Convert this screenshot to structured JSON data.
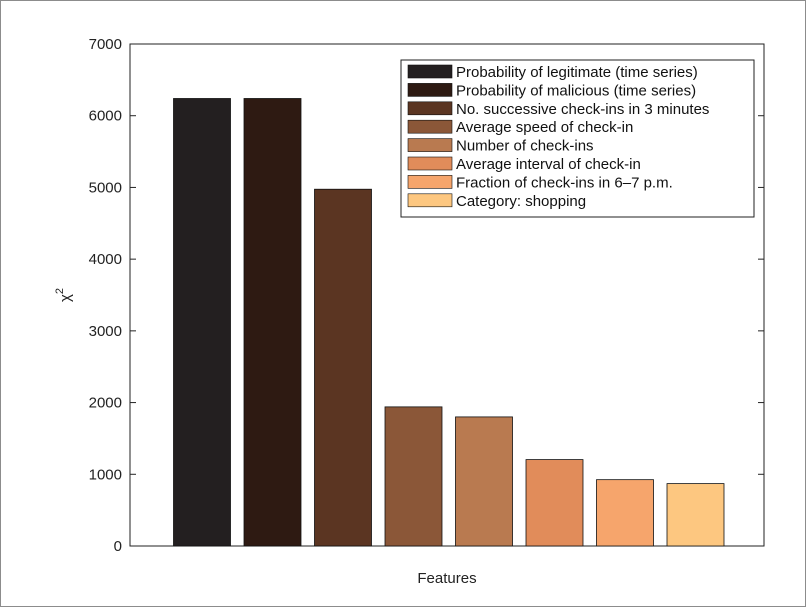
{
  "chart_data": {
    "type": "bar",
    "title": "",
    "xlabel": "Features",
    "ylabel": "χ",
    "ylabel_sup": "2",
    "ylim": [
      0,
      7000
    ],
    "yticks": [
      0,
      1000,
      2000,
      3000,
      4000,
      5000,
      6000,
      7000
    ],
    "grid": false,
    "legend_position": "top-right",
    "series": [
      {
        "name": "Probability of legitimate (time series)",
        "value": 6240,
        "color": "#231f20"
      },
      {
        "name": "Probability of malicious (time series)",
        "value": 6240,
        "color": "#2e1a12"
      },
      {
        "name": "No. successive check-ins in 3 minutes",
        "value": 4975,
        "color": "#5b3522"
      },
      {
        "name": "Average speed of check-in",
        "value": 1940,
        "color": "#8b5738"
      },
      {
        "name": "Number of check-ins",
        "value": 1800,
        "color": "#b97a50"
      },
      {
        "name": "Average interval of check-in",
        "value": 1205,
        "color": "#e18c5a"
      },
      {
        "name": "Fraction of check-ins in 6–7 p.m.",
        "value": 925,
        "color": "#f6a56c"
      },
      {
        "name": "Category: shopping",
        "value": 870,
        "color": "#fdc780"
      }
    ]
  }
}
